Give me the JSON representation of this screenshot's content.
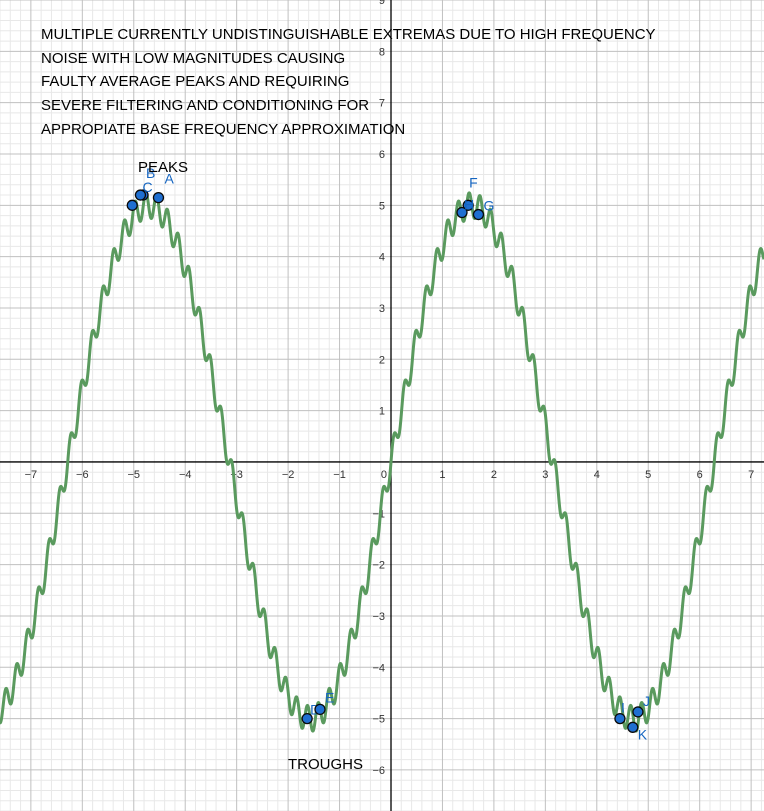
{
  "colors": {
    "curve": "#5a9a5e",
    "point_fill": "#1f6fd1",
    "point_stroke": "#0a0a0a",
    "point_label": "#1565c0",
    "axis": "#000000",
    "grid_major": "#c0c0c0",
    "grid_minor": "#e8e8e8",
    "text": "#000000"
  },
  "annotations": {
    "header_lines": [
      "MULTIPLE CURRENTLY UNDISTINGUISHABLE EXTREMAS DUE TO HIGH FREQUENCY",
      "NOISE WITH LOW MAGNITUDES CAUSING",
      "FAULTY AVERAGE PEAKS AND REQUIRING",
      "SEVERE FILTERING AND CONDITIONING FOR",
      "APPROPIATE BASE FREQUENCY APPROXIMATION"
    ],
    "peaks_label": "PEAKS",
    "troughs_label": "TROUGHS"
  },
  "chart_data": {
    "type": "line",
    "xlim": [
      -7.6,
      7.25
    ],
    "ylim": [
      -6.8,
      9
    ],
    "grid": true,
    "minor_grid": true,
    "x_ticks": [
      -7,
      -6,
      -5,
      -4,
      -3,
      -2,
      -1,
      0,
      1,
      2,
      3,
      4,
      5,
      6,
      7
    ],
    "y_ticks": [
      -6,
      -5,
      -4,
      -3,
      -2,
      -1,
      1,
      2,
      3,
      4,
      5,
      6,
      7,
      8,
      9
    ],
    "x_tick_labels": [
      "−7",
      "−6",
      "−5",
      "−4",
      "−3",
      "−2",
      "−1",
      "0",
      "1",
      "2",
      "3",
      "4",
      "5",
      "6",
      "7"
    ],
    "y_tick_labels": [
      "−6",
      "−5",
      "−4",
      "−3",
      "−2",
      "−1",
      "1",
      "2",
      "3",
      "4",
      "5",
      "6",
      "7",
      "8",
      "9"
    ],
    "series": [
      {
        "function": "5*sin(x) + 0.25*sin(30*x)",
        "base_amplitude": 5,
        "base_frequency": 1,
        "noise_amplitude": 0.25,
        "noise_frequency": 30
      }
    ],
    "points": [
      {
        "label": "A",
        "x": -4.52,
        "y": 5.15
      },
      {
        "label": "B",
        "x": -4.82,
        "y": 5.2
      },
      {
        "label": "C",
        "x": -4.87,
        "y": 5.2
      },
      {
        "label": "D",
        "x": -1.63,
        "y": -5.0
      },
      {
        "label": "E",
        "x": -1.38,
        "y": -4.82
      },
      {
        "label": "F",
        "x": 1.5,
        "y": 5.0
      },
      {
        "label": "H",
        "x": 1.38,
        "y": 4.86
      },
      {
        "label": "G",
        "x": 1.7,
        "y": 4.82
      },
      {
        "label": "I",
        "x": 4.45,
        "y": -5.0
      },
      {
        "label": "J",
        "x": 4.8,
        "y": -4.87
      },
      {
        "label": "K",
        "x": 4.7,
        "y": -5.17
      },
      {
        "label": "",
        "x": -5.03,
        "y": 5.0
      }
    ]
  }
}
